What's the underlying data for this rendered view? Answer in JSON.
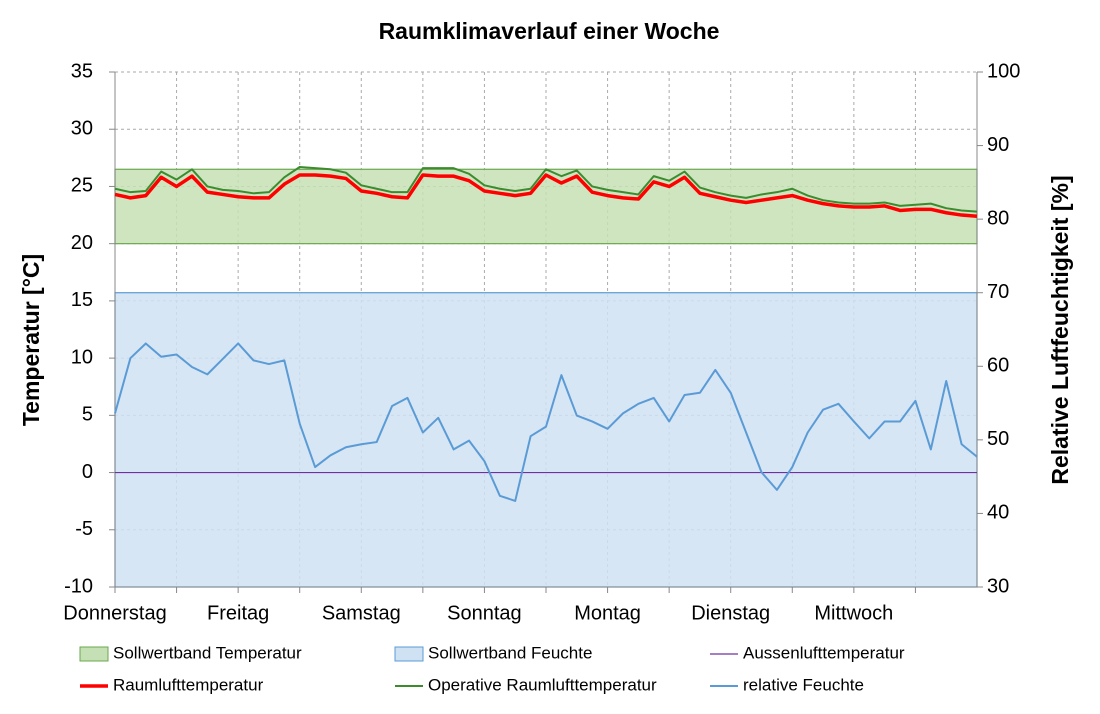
{
  "chart_data": {
    "type": "line",
    "title": "Raumklimaverlauf einer Woche",
    "y_label": "Temperatur [°C]",
    "y2_label": "Relative Luftfeuchtigkeit [%]",
    "xlim": [
      0,
      168
    ],
    "xticks": [
      {
        "value": 0,
        "label": "Donnerstag"
      },
      {
        "value": 12,
        "label": null
      },
      {
        "value": 24,
        "label": "Freitag"
      },
      {
        "value": 36,
        "label": null
      },
      {
        "value": 48,
        "label": "Samstag"
      },
      {
        "value": 60,
        "label": null
      },
      {
        "value": 72,
        "label": "Sonntag"
      },
      {
        "value": 84,
        "label": null
      },
      {
        "value": 96,
        "label": "Montag"
      },
      {
        "value": 108,
        "label": null
      },
      {
        "value": 120,
        "label": "Dienstag"
      },
      {
        "value": 132,
        "label": null
      },
      {
        "value": 144,
        "label": "Mittwoch"
      },
      {
        "value": 156,
        "label": null
      }
    ],
    "ylim": [
      -10,
      35
    ],
    "yticks": [
      -10,
      -5,
      0,
      5,
      10,
      15,
      20,
      25,
      30,
      35
    ],
    "y2lim": [
      30,
      100
    ],
    "y2ticks": [
      30,
      40,
      50,
      60,
      70,
      80,
      90,
      100
    ],
    "grid": true,
    "bands": [
      {
        "name": "Sollwertband Temperatur",
        "color": "#c5e0b4",
        "edge": "#6aa84f",
        "range": [
          20,
          26.5
        ],
        "axis": "y"
      },
      {
        "name": "Sollwertband Feuchte",
        "color": "#cfe2f3",
        "edge": "#5b9bd5",
        "range": [
          30,
          70
        ],
        "axis": "y2"
      }
    ],
    "x": [
      0,
      3,
      6,
      9,
      12,
      15,
      18,
      21,
      24,
      27,
      30,
      33,
      36,
      39,
      42,
      45,
      48,
      51,
      54,
      57,
      60,
      63,
      66,
      69,
      72,
      75,
      78,
      81,
      84,
      87,
      90,
      93,
      96,
      99,
      102,
      105,
      108,
      111,
      114,
      117,
      120,
      123,
      126,
      129,
      132,
      135,
      138,
      141,
      144,
      147,
      150,
      153,
      156,
      159,
      162,
      165,
      168
    ],
    "series": [
      {
        "name": "Aussenlufttemperatur",
        "color": "#7030a0",
        "width": 1.2,
        "axis": "y",
        "values": [
          0,
          0,
          0,
          0,
          0,
          0,
          0,
          0,
          0,
          0,
          0,
          0,
          0,
          0,
          0,
          0,
          0,
          0,
          0,
          0,
          0,
          0,
          0,
          0,
          0,
          0,
          0,
          0,
          0,
          0,
          0,
          0,
          0,
          0,
          0,
          0,
          0,
          0,
          0,
          0,
          0,
          0,
          0,
          0,
          0,
          0,
          0,
          0,
          0,
          0,
          0,
          0,
          0,
          0,
          0,
          0,
          0
        ]
      },
      {
        "name": "Raumlufttemperatur",
        "color": "#ff0000",
        "width": 3.5,
        "axis": "y",
        "values": [
          24.3,
          24.0,
          24.2,
          25.8,
          25.0,
          25.9,
          24.5,
          24.3,
          24.1,
          24.0,
          24.0,
          25.2,
          26.0,
          26.0,
          25.9,
          25.7,
          24.6,
          24.4,
          24.1,
          24.0,
          26.0,
          25.9,
          25.9,
          25.5,
          24.6,
          24.4,
          24.2,
          24.4,
          26.0,
          25.3,
          25.9,
          24.5,
          24.2,
          24.0,
          23.9,
          25.4,
          25.0,
          25.8,
          24.4,
          24.1,
          23.8,
          23.6,
          23.8,
          24.0,
          24.2,
          23.8,
          23.5,
          23.3,
          23.2,
          23.2,
          23.3,
          22.9,
          23.0,
          23.0,
          22.7,
          22.5,
          22.4
        ]
      },
      {
        "name": "Operative Raumlufttemperatur",
        "color": "#3d8b2f",
        "width": 2,
        "axis": "y",
        "values": [
          24.8,
          24.5,
          24.6,
          26.3,
          25.6,
          26.5,
          25.0,
          24.7,
          24.6,
          24.4,
          24.5,
          25.8,
          26.7,
          26.6,
          26.5,
          26.2,
          25.1,
          24.8,
          24.5,
          24.5,
          26.6,
          26.6,
          26.6,
          26.1,
          25.1,
          24.8,
          24.6,
          24.8,
          26.5,
          25.9,
          26.4,
          25.0,
          24.7,
          24.5,
          24.3,
          25.9,
          25.5,
          26.3,
          24.9,
          24.5,
          24.2,
          24.0,
          24.3,
          24.5,
          24.8,
          24.2,
          23.8,
          23.6,
          23.5,
          23.5,
          23.6,
          23.3,
          23.4,
          23.5,
          23.1,
          22.9,
          22.8
        ]
      },
      {
        "name": "relative Feuchte",
        "color": "#5b9bd5",
        "width": 2,
        "axis": "y2",
        "values": [
          53.6,
          61.1,
          63.1,
          61.3,
          61.6,
          59.9,
          58.9,
          61.0,
          63.1,
          60.8,
          60.3,
          60.8,
          52.2,
          46.3,
          47.9,
          49.0,
          49.4,
          49.7,
          54.6,
          55.7,
          51.0,
          53.0,
          48.7,
          49.9,
          47.1,
          42.4,
          41.7,
          50.5,
          51.8,
          58.8,
          53.3,
          52.5,
          51.5,
          53.6,
          54.9,
          55.7,
          52.5,
          56.1,
          56.4,
          59.5,
          56.4,
          51.0,
          45.6,
          43.2,
          46.3,
          51.0,
          54.1,
          54.9,
          52.5,
          50.2,
          52.5,
          52.5,
          55.3,
          48.7,
          58.0,
          49.4,
          47.7
        ]
      }
    ]
  }
}
